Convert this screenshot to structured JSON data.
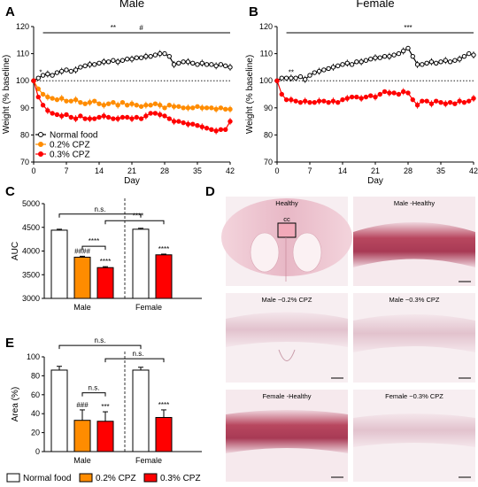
{
  "panel_letters": {
    "A": "A",
    "B": "B",
    "C": "C",
    "D": "D",
    "E": "E"
  },
  "colors": {
    "normal": "#000000",
    "cpz02": "#ff8c00",
    "cpz03": "#ff0000",
    "normal_fill": "#ffffff"
  },
  "chart_data": [
    {
      "id": "A",
      "type": "line",
      "title": "Male",
      "xlabel": "Day",
      "ylabel": "Weight (% baseline)",
      "xlim": [
        0,
        42
      ],
      "ylim": [
        70,
        120
      ],
      "xticks": [
        "0",
        "7",
        "14",
        "21",
        "28",
        "35",
        "42"
      ],
      "yticks": [
        "70",
        "80",
        "90",
        "100",
        "110",
        "120"
      ],
      "reference_line": 100,
      "series": [
        {
          "name": "Normal food",
          "color": "#000000",
          "marker": "open-circle",
          "x": [
            0,
            1,
            2,
            3,
            4,
            5,
            6,
            7,
            8,
            9,
            10,
            11,
            12,
            13,
            14,
            15,
            16,
            17,
            18,
            19,
            20,
            21,
            22,
            23,
            24,
            25,
            26,
            27,
            28,
            29,
            30,
            31,
            32,
            33,
            34,
            35,
            36,
            37,
            38,
            39,
            40,
            41,
            42
          ],
          "y": [
            100,
            101,
            102,
            102.5,
            102,
            103,
            103.5,
            104,
            103.5,
            104,
            105,
            105.5,
            106,
            106,
            106.5,
            107,
            107,
            107.5,
            107,
            107.5,
            108,
            108,
            108.5,
            108.5,
            109,
            109,
            109.5,
            110,
            110,
            109,
            106,
            106.5,
            107,
            107,
            106.5,
            106,
            106.5,
            106,
            106,
            105.5,
            106,
            105.5,
            105
          ]
        },
        {
          "name": "0.2% CPZ",
          "color": "#ff8c00",
          "marker": "filled-circle",
          "x": [
            0,
            1,
            2,
            3,
            4,
            5,
            6,
            7,
            8,
            9,
            10,
            11,
            12,
            13,
            14,
            15,
            16,
            17,
            18,
            19,
            20,
            21,
            22,
            23,
            24,
            25,
            26,
            27,
            28,
            29,
            30,
            31,
            32,
            33,
            34,
            35,
            36,
            37,
            38,
            39,
            40,
            41,
            42
          ],
          "y": [
            100,
            97,
            95,
            94,
            93.5,
            93,
            93.5,
            92.5,
            92.5,
            93,
            92,
            91.5,
            92,
            92.5,
            91.5,
            91,
            91.5,
            92,
            91,
            92,
            91,
            91.5,
            91,
            90.5,
            91,
            91,
            91.5,
            91,
            90,
            91,
            90.5,
            90.5,
            90,
            90,
            90,
            90.5,
            90,
            90,
            90,
            89.5,
            90,
            89.5,
            89.5
          ]
        },
        {
          "name": "0.3% CPZ",
          "color": "#ff0000",
          "marker": "filled-circle",
          "x": [
            0,
            1,
            2,
            3,
            4,
            5,
            6,
            7,
            8,
            9,
            10,
            11,
            12,
            13,
            14,
            15,
            16,
            17,
            18,
            19,
            20,
            21,
            22,
            23,
            24,
            25,
            26,
            27,
            28,
            29,
            30,
            31,
            32,
            33,
            34,
            35,
            36,
            37,
            38,
            39,
            40,
            41,
            42
          ],
          "y": [
            100,
            94,
            91,
            89,
            88,
            87.5,
            87,
            87.5,
            86.5,
            86,
            87,
            86,
            86,
            86,
            86.5,
            87,
            86.5,
            86,
            86,
            86.5,
            86.5,
            86,
            86.5,
            86,
            87,
            88,
            88,
            87.5,
            87,
            86,
            85,
            85,
            84.5,
            84,
            84,
            83.5,
            83,
            82.5,
            82,
            81.5,
            82,
            82,
            85
          ]
        }
      ],
      "annotations": [
        {
          "text": "**",
          "x": 17
        },
        {
          "text": "#",
          "x": 23
        },
        {
          "text": "*",
          "x": 1.5
        }
      ]
    },
    {
      "id": "B",
      "type": "line",
      "title": "Female",
      "xlabel": "Day",
      "ylabel": "Weight (% baseline)",
      "xlim": [
        0,
        42
      ],
      "ylim": [
        70,
        120
      ],
      "xticks": [
        "0",
        "7",
        "14",
        "21",
        "28",
        "35",
        "42"
      ],
      "yticks": [
        "70",
        "80",
        "90",
        "100",
        "110",
        "120"
      ],
      "reference_line": 100,
      "series": [
        {
          "name": "Normal food",
          "color": "#000000",
          "marker": "open-circle",
          "x": [
            0,
            1,
            2,
            3,
            4,
            5,
            6,
            7,
            8,
            9,
            10,
            11,
            12,
            13,
            14,
            15,
            16,
            17,
            18,
            19,
            20,
            21,
            22,
            23,
            24,
            25,
            26,
            27,
            28,
            29,
            30,
            31,
            32,
            33,
            34,
            35,
            36,
            37,
            38,
            39,
            40,
            41,
            42
          ],
          "y": [
            100,
            101,
            101,
            101,
            101,
            101.5,
            100.5,
            102,
            103,
            103.5,
            104,
            104.5,
            105,
            105.5,
            106,
            106.5,
            106,
            107,
            107,
            107.5,
            108,
            108.5,
            108.5,
            109,
            109,
            109.5,
            110,
            111,
            112,
            109,
            106,
            106,
            106.5,
            107,
            106.5,
            107,
            107.5,
            107,
            107.5,
            108,
            109,
            110,
            109.5
          ]
        },
        {
          "name": "0.3% CPZ",
          "color": "#ff0000",
          "marker": "filled-circle",
          "x": [
            0,
            1,
            2,
            3,
            4,
            5,
            6,
            7,
            8,
            9,
            10,
            11,
            12,
            13,
            14,
            15,
            16,
            17,
            18,
            19,
            20,
            21,
            22,
            23,
            24,
            25,
            26,
            27,
            28,
            29,
            30,
            31,
            32,
            33,
            34,
            35,
            36,
            37,
            38,
            39,
            40,
            41,
            42
          ],
          "y": [
            100,
            95,
            93,
            93,
            92.5,
            92,
            92.5,
            92,
            92,
            92.5,
            92.5,
            92,
            92.5,
            92,
            93,
            93.5,
            94,
            94,
            93.5,
            94,
            94.5,
            94,
            95,
            96,
            95.5,
            95.5,
            95,
            96,
            95.5,
            93,
            91,
            92.5,
            92.5,
            91.5,
            92.5,
            92,
            91.5,
            92,
            91.5,
            92.5,
            92,
            92.5,
            93.5
          ]
        }
      ],
      "annotations": [
        {
          "text": "***",
          "x": 28
        },
        {
          "text": "**",
          "x": 3
        }
      ]
    },
    {
      "id": "C",
      "type": "bar",
      "xlabel": "",
      "ylabel": "AUC",
      "ylim": [
        3000,
        5000
      ],
      "yticks": [
        "3000",
        "3500",
        "4000",
        "4500",
        "5000"
      ],
      "groups": [
        "Male",
        "Female"
      ],
      "bars": [
        {
          "group": "Male",
          "series": "Normal food",
          "value": 4440,
          "err": 20,
          "color": "#ffffff",
          "label": ""
        },
        {
          "group": "Male",
          "series": "0.2% CPZ",
          "value": 3870,
          "err": 20,
          "color": "#ff8c00",
          "label": "####"
        },
        {
          "group": "Male",
          "series": "0.3% CPZ",
          "value": 3650,
          "err": 20,
          "color": "#ff0000",
          "label": "****"
        },
        {
          "group": "Female",
          "series": "Normal food",
          "value": 4460,
          "err": 20,
          "color": "#ffffff",
          "label": ""
        },
        {
          "group": "Female",
          "series": "0.3% CPZ",
          "value": 3920,
          "err": 15,
          "color": "#ff0000",
          "label": "****"
        }
      ],
      "brackets": [
        {
          "text": "n.s.",
          "level": 4780
        },
        {
          "text": "****",
          "level": 4640
        },
        {
          "text": "****",
          "level": 4100
        }
      ]
    },
    {
      "id": "E",
      "type": "bar",
      "xlabel": "",
      "ylabel": "Area (%)",
      "ylim": [
        0,
        100
      ],
      "yticks": [
        "0",
        "20",
        "40",
        "60",
        "80",
        "100"
      ],
      "groups": [
        "Male",
        "Female"
      ],
      "bars": [
        {
          "group": "Male",
          "series": "Normal food",
          "value": 86,
          "err": 4,
          "color": "#ffffff",
          "label": ""
        },
        {
          "group": "Male",
          "series": "0.2% CPZ",
          "value": 33,
          "err": 11,
          "color": "#ff8c00",
          "label": "###"
        },
        {
          "group": "Male",
          "series": "0.3% CPZ",
          "value": 32,
          "err": 10,
          "color": "#ff0000",
          "label": "***"
        },
        {
          "group": "Female",
          "series": "Normal food",
          "value": 86,
          "err": 3,
          "color": "#ffffff",
          "label": ""
        },
        {
          "group": "Female",
          "series": "0.3% CPZ",
          "value": 36,
          "err": 8,
          "color": "#ff0000",
          "label": "****"
        }
      ],
      "brackets": [
        {
          "text": "n.s.",
          "level": 112
        },
        {
          "text": "n.s.",
          "level": 98
        },
        {
          "text": "n.s.",
          "level": 62
        }
      ]
    }
  ],
  "micrographs": [
    {
      "label": "Healthy",
      "inset": "cc"
    },
    {
      "label": "Male -Healthy"
    },
    {
      "label": "Male −0.2% CPZ"
    },
    {
      "label": "Male −0.3% CPZ"
    },
    {
      "label": "Female -Healthy"
    },
    {
      "label": "Female −0.3% CPZ"
    }
  ],
  "legend_E": [
    "Normal food",
    "0.2% CPZ",
    "0.3% CPZ"
  ]
}
